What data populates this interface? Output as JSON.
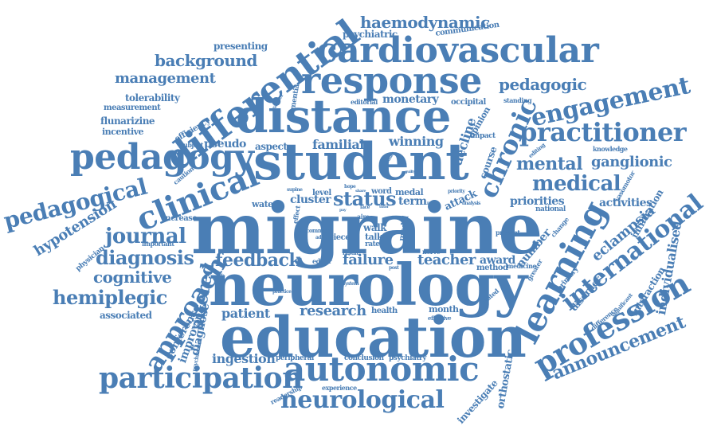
{
  "color": "#4a7eb5",
  "words": [
    "migraine",
    "neurology",
    "education",
    "student",
    "distance",
    "response",
    "cardiovascular",
    "differential",
    "pedagogy",
    "clinical",
    "learning",
    "autonomic",
    "participation",
    "profession",
    "practitioner",
    "engagement",
    "chronic",
    "approach",
    "international",
    "medical",
    "neurological",
    "pedagogical",
    "journal",
    "diagnosis",
    "hemiplegic",
    "status",
    "feedback",
    "altered",
    "announcement",
    "cognitive",
    "mental",
    "haemodynamic",
    "background",
    "management",
    "pedagogic",
    "hypotension",
    "ganglionic",
    "failure",
    "teacher",
    "research",
    "patient",
    "ingestion",
    "eclampsia",
    "individualised",
    "familial",
    "winning",
    "monetary",
    "cluster",
    "term",
    "decline",
    "pseudo",
    "associated",
    "diagnose",
    "improving",
    "conference",
    "award",
    "activities",
    "priorities",
    "infiltration",
    "number",
    "orthostatic",
    "investigate",
    "course",
    "interaction",
    "disorder",
    "psychiatric",
    "communication",
    "presenting",
    "tolerability",
    "measurement",
    "flunarizine",
    "incentive",
    "efficiency",
    "aspect",
    "subject",
    "caution",
    "physician",
    "important",
    "increase",
    "water",
    "level",
    "word",
    "medal",
    "walk",
    "talk",
    "rate",
    "attack",
    "model",
    "piece",
    "editor",
    "result",
    "nerve",
    "method",
    "medicine",
    "health",
    "month",
    "effective",
    "conclusion",
    "psychiatry",
    "peripheral",
    "experience",
    "readership",
    "seated",
    "primary",
    "greater",
    "difference",
    "significant",
    "vasomotor",
    "national",
    "present",
    "change",
    "knowledge",
    "editing",
    "standing",
    "occipital",
    "opinion",
    "impact",
    "dementia",
    "learner",
    "editorial",
    "common",
    "supine",
    "effect",
    "aim",
    "face",
    "post",
    "system",
    "practice",
    "psychiatrist",
    "structure",
    "hope",
    "share",
    "pay",
    "analysis",
    "priority",
    "policy",
    "guilty",
    "studies",
    "think",
    "adult",
    "tutor"
  ]
}
